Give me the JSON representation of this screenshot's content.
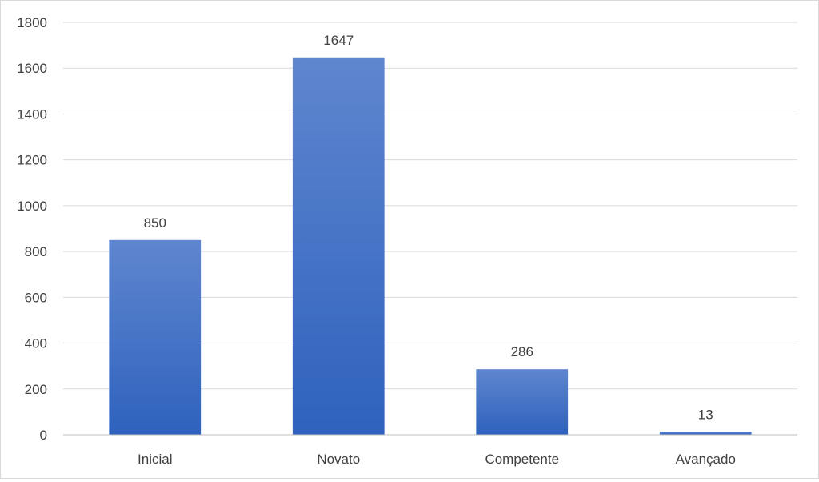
{
  "chart_data": {
    "type": "bar",
    "categories": [
      "Inicial",
      "Novato",
      "Competente",
      "Avançado"
    ],
    "values": [
      850,
      1647,
      286,
      13
    ],
    "data_labels": [
      "850",
      "1647",
      "286",
      "13"
    ],
    "yticks": [
      "0",
      "200",
      "400",
      "600",
      "800",
      "1000",
      "1200",
      "1400",
      "1600",
      "1800"
    ],
    "ylim": [
      0,
      1800
    ],
    "grid": true,
    "legend": "none",
    "colors": {
      "bar_top": "#5f86cf",
      "bar_bottom": "#2e62bd",
      "grid": "#d9d9d9",
      "axis": "#bfbfbf",
      "text": "#404040"
    }
  }
}
